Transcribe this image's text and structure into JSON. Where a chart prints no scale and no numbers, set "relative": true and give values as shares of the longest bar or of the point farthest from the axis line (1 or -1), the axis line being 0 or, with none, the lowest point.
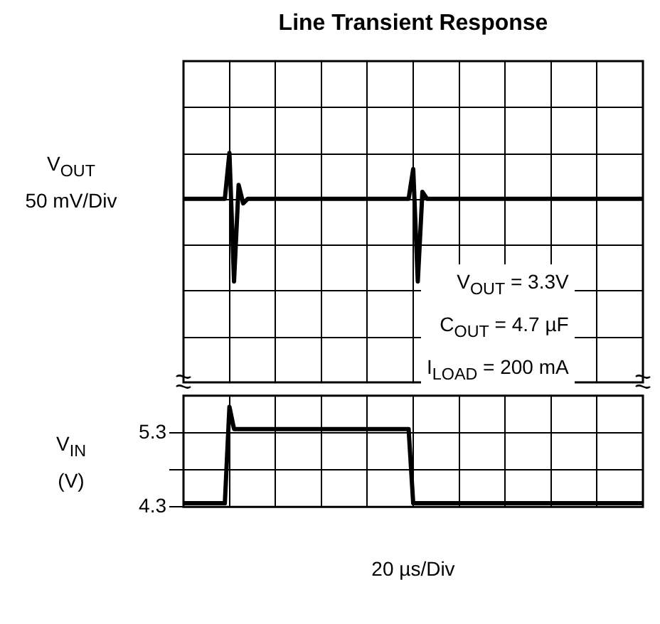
{
  "chart_data": [
    {
      "type": "line",
      "title": "Line Transient Response",
      "ylabel": "V$_{OUT}$ 50 mV/Div",
      "annotations": [
        "V$_{OUT}$ = 3.3V",
        "C$_{OUT}$ = 4.7 µF",
        "I$_{LOAD}$ = 200 mA"
      ],
      "relative": true,
      "grid": true,
      "tick_labels": false,
      "categories": [
        null,
        null,
        null,
        null,
        null,
        null,
        null,
        null,
        null,
        null,
        null,
        null,
        null,
        null,
        null,
        null,
        null,
        null,
        null,
        null,
        null,
        null,
        null,
        null,
        null,
        null,
        null,
        null,
        null,
        null,
        null,
        null,
        null,
        null,
        null,
        null,
        null,
        null,
        null,
        null,
        null,
        null,
        null,
        null,
        null,
        null,
        null,
        null,
        null,
        null,
        null,
        null,
        null,
        null,
        null,
        null,
        null,
        null,
        null,
        null,
        null,
        null,
        null,
        null,
        null,
        null,
        null,
        null,
        null,
        null,
        null,
        null,
        null,
        null,
        null,
        null,
        null,
        null,
        null,
        null,
        null,
        null,
        null,
        null,
        null,
        null,
        null,
        null,
        null,
        null,
        null,
        null,
        null,
        null,
        null,
        null,
        null,
        null,
        null,
        null,
        null
      ],
      "series": [
        {
          "color": "#000000",
          "values": [
            0.8,
            0.8,
            0.8,
            0.8,
            0.8,
            0.8,
            0.8,
            0.8,
            0.8,
            0.8,
            1,
            0.44,
            0.86,
            0.78,
            0.8,
            0.8,
            0.8,
            0.8,
            0.8,
            0.8,
            0.8,
            0.8,
            0.8,
            0.8,
            0.8,
            0.8,
            0.8,
            0.8,
            0.8,
            0.8,
            0.8,
            0.8,
            0.8,
            0.8,
            0.8,
            0.8,
            0.8,
            0.8,
            0.8,
            0.8,
            0.8,
            0.8,
            0.8,
            0.8,
            0.8,
            0.8,
            0.8,
            0.8,
            0.8,
            0.8,
            0.93,
            0.44,
            0.83,
            0.8,
            0.8,
            0.8,
            0.8,
            0.8,
            0.8,
            0.8,
            0.8,
            0.8,
            0.8,
            0.8,
            0.8,
            0.8,
            0.8,
            0.8,
            0.8,
            0.8,
            0.8,
            0.8,
            0.8,
            0.8,
            0.8,
            0.8,
            0.8,
            0.8,
            0.8,
            0.8,
            0.8,
            0.8,
            0.8,
            0.8,
            0.8,
            0.8,
            0.8,
            0.8,
            0.8,
            0.8,
            0.8,
            0.8,
            0.8,
            0.8,
            0.8,
            0.8,
            0.8,
            0.8,
            0.8,
            0.8,
            0.8
          ]
        }
      ]
    },
    {
      "type": "line",
      "ylabel": "V$_{IN}$ (V)",
      "xlabel": "20 µs/Div",
      "grid": true,
      "tick_labels": "y",
      "ylim": [
        4.3,
        5.8
      ],
      "yticks": [
        4.3,
        {
          "value": 4.8,
          "label": null
        },
        5.3
      ],
      "categories": [
        null,
        null,
        null,
        null,
        null,
        null,
        null,
        null,
        null,
        null,
        null,
        null,
        null,
        null,
        null,
        null,
        null,
        null,
        null,
        null,
        null,
        null,
        null,
        null,
        null,
        null,
        null,
        null,
        null,
        null,
        null,
        null,
        null,
        null,
        null,
        null,
        null,
        null,
        null,
        null,
        null,
        null,
        null,
        null,
        null,
        null,
        null,
        null,
        null,
        null,
        null,
        null,
        null,
        null,
        null,
        null,
        null,
        null,
        null,
        null,
        null,
        null,
        null,
        null,
        null,
        null,
        null,
        null,
        null,
        null,
        null,
        null,
        null,
        null,
        null,
        null,
        null,
        null,
        null,
        null,
        null,
        null,
        null,
        null,
        null,
        null,
        null,
        null,
        null,
        null,
        null,
        null,
        null,
        null,
        null,
        null,
        null,
        null,
        null,
        null,
        null
      ],
      "series": [
        {
          "color": "#000000",
          "values": [
            4.35,
            4.35,
            4.35,
            4.35,
            4.35,
            4.35,
            4.35,
            4.35,
            4.35,
            4.35,
            5.65,
            5.35,
            5.35,
            5.35,
            5.35,
            5.35,
            5.35,
            5.35,
            5.35,
            5.35,
            5.35,
            5.35,
            5.35,
            5.35,
            5.35,
            5.35,
            5.35,
            5.35,
            5.35,
            5.35,
            5.35,
            5.35,
            5.35,
            5.35,
            5.35,
            5.35,
            5.35,
            5.35,
            5.35,
            5.35,
            5.35,
            5.35,
            5.35,
            5.35,
            5.35,
            5.35,
            5.35,
            5.35,
            5.35,
            5.35,
            4.35,
            4.35,
            4.35,
            4.35,
            4.35,
            4.35,
            4.35,
            4.35,
            4.35,
            4.35,
            4.35,
            4.35,
            4.35,
            4.35,
            4.35,
            4.35,
            4.35,
            4.35,
            4.35,
            4.35,
            4.35,
            4.35,
            4.35,
            4.35,
            4.35,
            4.35,
            4.35,
            4.35,
            4.35,
            4.35,
            4.35,
            4.35,
            4.35,
            4.35,
            4.35,
            4.35,
            4.35,
            4.35,
            4.35,
            4.35,
            4.35,
            4.35,
            4.35,
            4.35,
            4.35,
            4.35,
            4.35,
            4.35,
            4.35,
            4.35,
            4.35
          ]
        }
      ]
    }
  ]
}
